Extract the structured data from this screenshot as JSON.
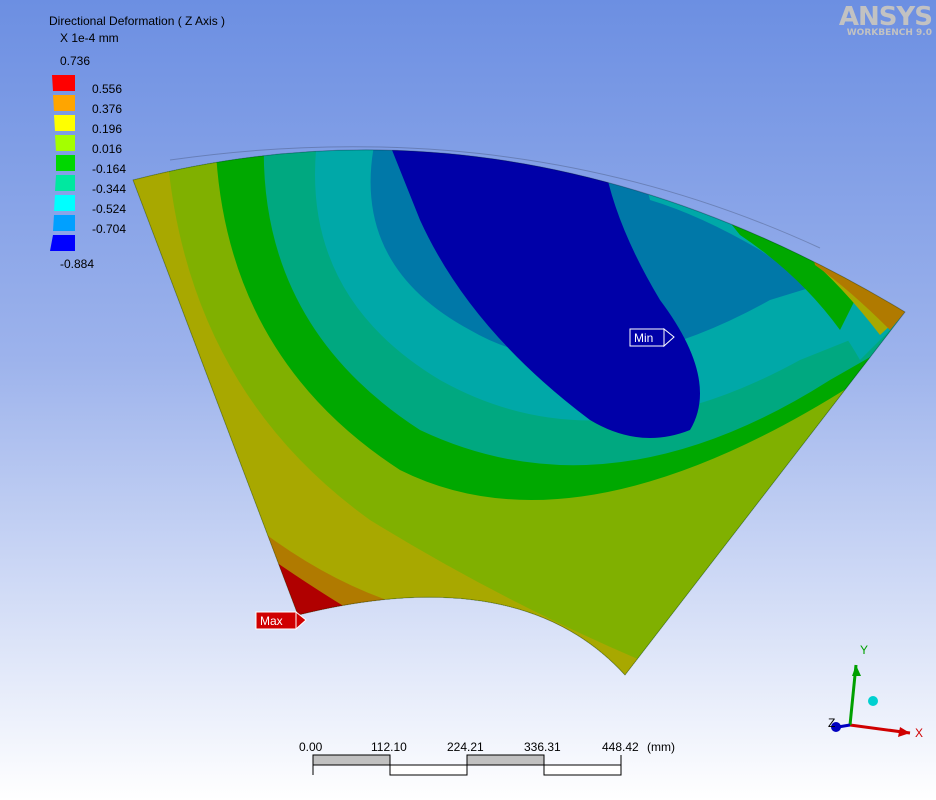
{
  "result": {
    "title": "Directional Deformation ( Z Axis )",
    "units": "X 1e-4 mm"
  },
  "legend": {
    "top_value": "0.736",
    "bottom_value": "-0.884",
    "levels": [
      {
        "label": "0.556",
        "color": "#ff0000"
      },
      {
        "label": "0.376",
        "color": "#ffa500"
      },
      {
        "label": "0.196",
        "color": "#ffff00"
      },
      {
        "label": "0.016",
        "color": "#a4ff00"
      },
      {
        "label": "-0.164",
        "color": "#00d700"
      },
      {
        "label": "-0.344",
        "color": "#00e8a0"
      },
      {
        "label": "-0.524",
        "color": "#00ffff"
      },
      {
        "label": "-0.704",
        "color": "#00a0ff"
      },
      {
        "label": "",
        "color": "#0000ff"
      }
    ]
  },
  "logo": {
    "main": "ANSYS",
    "sub": "WORKBENCH 9.0"
  },
  "probes": {
    "min_label": "Min",
    "max_label": "Max"
  },
  "scale_bar": {
    "ticks": [
      "0.00",
      "112.10",
      "224.21",
      "336.31",
      "448.42"
    ],
    "unit": "(mm)"
  },
  "triad": {
    "x": "X",
    "y": "Y",
    "z": "Z"
  },
  "colors": {
    "max": "#b00000",
    "band_orange_dark": "#b07a00",
    "band_olive": "#a8a800",
    "band_yellowgreen": "#80b000",
    "band_green": "#00a800",
    "band_seagreen": "#00a880",
    "band_teal": "#00a8a8",
    "band_steelblue": "#0078a8",
    "band_min": "#0000a8"
  }
}
